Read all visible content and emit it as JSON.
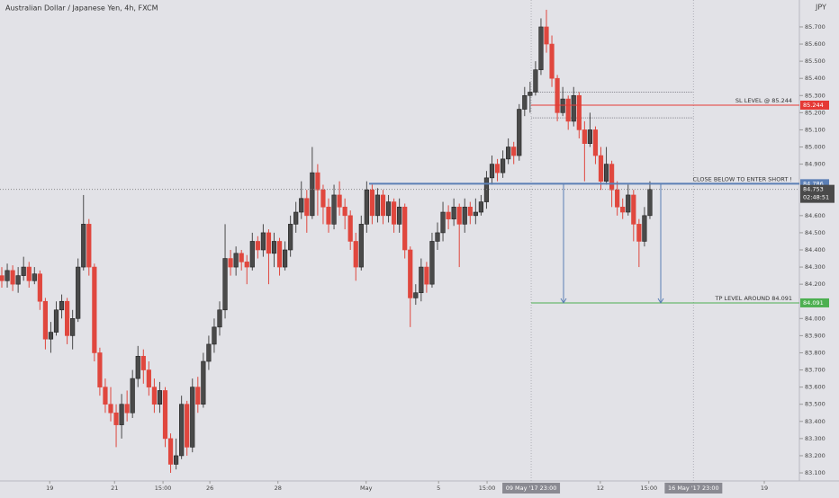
{
  "chart_data": {
    "type": "candlestick",
    "title": "Australian Dollar / Japanese Yen, 4h, FXCM",
    "currency": "JPY",
    "countdown": "02:48:51",
    "ylim": [
      83.053,
      85.857
    ],
    "yticks": [
      {
        "value": 83.1,
        "label": "83.100"
      },
      {
        "value": 83.2,
        "label": "83.200"
      },
      {
        "value": 83.3,
        "label": "83.300"
      },
      {
        "value": 83.4,
        "label": "83.400"
      },
      {
        "value": 83.5,
        "label": "83.500"
      },
      {
        "value": 83.6,
        "label": "83.600"
      },
      {
        "value": 83.7,
        "label": "83.700"
      },
      {
        "value": 83.8,
        "label": "83.800"
      },
      {
        "value": 83.9,
        "label": "83.900"
      },
      {
        "value": 84.0,
        "label": "84.000"
      },
      {
        "value": 84.2,
        "label": "84.200"
      },
      {
        "value": 84.3,
        "label": "84.300"
      },
      {
        "value": 84.4,
        "label": "84.400"
      },
      {
        "value": 84.5,
        "label": "84.500"
      },
      {
        "value": 84.6,
        "label": "84.600"
      },
      {
        "value": 84.9,
        "label": "84.900"
      },
      {
        "value": 85.0,
        "label": "85.000"
      },
      {
        "value": 85.1,
        "label": "85.100"
      },
      {
        "value": 85.2,
        "label": "85.200"
      },
      {
        "value": 85.3,
        "label": "85.300"
      },
      {
        "value": 85.4,
        "label": "85.400"
      },
      {
        "value": 85.5,
        "label": "85.500"
      },
      {
        "value": 85.6,
        "label": "85.600"
      },
      {
        "value": 85.7,
        "label": "85.700"
      }
    ],
    "xticks": [
      {
        "value": 8.8,
        "label": "19"
      },
      {
        "value": 20.7,
        "label": "21"
      },
      {
        "value": 29.6,
        "label": "15:00"
      },
      {
        "value": 38.2,
        "label": "26"
      },
      {
        "value": 50.7,
        "label": "28"
      },
      {
        "value": 66.9,
        "label": "May"
      },
      {
        "value": 80.2,
        "label": "5"
      },
      {
        "value": 89.1,
        "label": "15:00"
      },
      {
        "value": 109.9,
        "label": "12"
      },
      {
        "value": 118.8,
        "label": "15:00"
      },
      {
        "value": 140,
        "label": "19"
      }
    ],
    "xmarkers": [
      {
        "value": 97.2,
        "label": "09 May '17 23:00"
      },
      {
        "value": 127,
        "label": "16 May '17 23:00"
      }
    ],
    "up_color": "#4a4a4a",
    "down_color": "#e0473e",
    "levels": [
      {
        "value": 85.244,
        "label": "SL LEVEL @ 85.244",
        "color": "#e53935"
      },
      {
        "value": 84.786,
        "label": "CLOSE BELOW TO ENTER SHORT !",
        "color": "#5b7fb5"
      },
      {
        "value": 84.091,
        "label": "TP LEVEL AROUND 84.091",
        "color": "#4caf50"
      }
    ],
    "zone": [
      85.32,
      85.17
    ],
    "candles": [
      [
        84.25,
        84.3,
        84.18,
        84.22
      ],
      [
        84.22,
        84.32,
        84.18,
        84.28
      ],
      [
        84.28,
        84.31,
        84.16,
        84.2
      ],
      [
        84.2,
        84.3,
        84.15,
        84.25
      ],
      [
        84.25,
        84.36,
        84.22,
        84.3
      ],
      [
        84.3,
        84.33,
        84.18,
        84.22
      ],
      [
        84.22,
        84.3,
        84.2,
        84.26
      ],
      [
        84.26,
        84.28,
        84.05,
        84.1
      ],
      [
        84.1,
        84.12,
        83.82,
        83.88
      ],
      [
        83.88,
        83.98,
        83.8,
        83.92
      ],
      [
        83.92,
        84.1,
        83.9,
        84.05
      ],
      [
        84.05,
        84.14,
        84.0,
        84.1
      ],
      [
        84.1,
        84.12,
        83.85,
        83.9
      ],
      [
        83.9,
        84.05,
        83.82,
        84.0
      ],
      [
        84.0,
        84.35,
        83.98,
        84.3
      ],
      [
        84.3,
        84.72,
        84.28,
        84.55
      ],
      [
        84.55,
        84.58,
        84.25,
        84.3
      ],
      [
        84.3,
        84.32,
        83.75,
        83.8
      ],
      [
        83.8,
        83.83,
        83.55,
        83.6
      ],
      [
        83.6,
        83.65,
        83.45,
        83.5
      ],
      [
        83.5,
        83.6,
        83.4,
        83.45
      ],
      [
        83.45,
        83.5,
        83.25,
        83.38
      ],
      [
        83.38,
        83.56,
        83.3,
        83.5
      ],
      [
        83.5,
        83.58,
        83.4,
        83.45
      ],
      [
        83.45,
        83.7,
        83.42,
        83.65
      ],
      [
        83.65,
        83.84,
        83.6,
        83.78
      ],
      [
        83.78,
        83.82,
        83.62,
        83.7
      ],
      [
        83.7,
        83.75,
        83.55,
        83.6
      ],
      [
        83.6,
        83.65,
        83.45,
        83.5
      ],
      [
        83.5,
        83.63,
        83.45,
        83.58
      ],
      [
        83.58,
        83.6,
        83.25,
        83.3
      ],
      [
        83.3,
        83.33,
        83.1,
        83.15
      ],
      [
        83.15,
        83.3,
        83.12,
        83.2
      ],
      [
        83.2,
        83.55,
        83.18,
        83.5
      ],
      [
        83.5,
        83.52,
        83.2,
        83.25
      ],
      [
        83.25,
        83.65,
        83.22,
        83.6
      ],
      [
        83.6,
        83.66,
        83.45,
        83.5
      ],
      [
        83.5,
        83.8,
        83.48,
        83.75
      ],
      [
        83.75,
        83.9,
        83.7,
        83.85
      ],
      [
        83.85,
        84.0,
        83.8,
        83.95
      ],
      [
        83.95,
        84.1,
        83.9,
        84.05
      ],
      [
        84.05,
        84.55,
        84.0,
        84.35
      ],
      [
        84.35,
        84.4,
        84.25,
        84.3
      ],
      [
        84.3,
        84.42,
        84.25,
        84.38
      ],
      [
        84.38,
        84.4,
        84.28,
        84.33
      ],
      [
        84.33,
        84.37,
        84.2,
        84.3
      ],
      [
        84.3,
        84.5,
        84.28,
        84.45
      ],
      [
        84.45,
        84.48,
        84.35,
        84.4
      ],
      [
        84.4,
        84.55,
        84.36,
        84.5
      ],
      [
        84.5,
        84.52,
        84.2,
        84.38
      ],
      [
        84.38,
        84.5,
        84.3,
        84.45
      ],
      [
        84.45,
        84.47,
        84.25,
        84.3
      ],
      [
        84.3,
        84.45,
        84.28,
        84.4
      ],
      [
        84.4,
        84.6,
        84.36,
        84.55
      ],
      [
        84.55,
        84.68,
        84.5,
        84.62
      ],
      [
        84.62,
        84.8,
        84.58,
        84.7
      ],
      [
        84.7,
        84.75,
        84.5,
        84.6
      ],
      [
        84.6,
        85.0,
        84.58,
        84.85
      ],
      [
        84.85,
        84.9,
        84.6,
        84.75
      ],
      [
        84.75,
        84.78,
        84.55,
        84.65
      ],
      [
        84.65,
        84.7,
        84.5,
        84.55
      ],
      [
        84.55,
        84.78,
        84.52,
        84.72
      ],
      [
        84.72,
        84.8,
        84.6,
        84.65
      ],
      [
        84.65,
        84.7,
        84.52,
        84.6
      ],
      [
        84.6,
        84.63,
        84.4,
        84.45
      ],
      [
        84.45,
        84.5,
        84.22,
        84.3
      ],
      [
        84.3,
        84.6,
        84.28,
        84.55
      ],
      [
        84.55,
        84.8,
        84.5,
        84.75
      ],
      [
        84.75,
        84.78,
        84.55,
        84.6
      ],
      [
        84.6,
        84.76,
        84.56,
        84.72
      ],
      [
        84.72,
        84.75,
        84.55,
        84.6
      ],
      [
        84.6,
        84.72,
        84.56,
        84.68
      ],
      [
        84.68,
        84.7,
        84.5,
        84.55
      ],
      [
        84.55,
        84.7,
        84.5,
        84.65
      ],
      [
        84.65,
        84.67,
        84.35,
        84.4
      ],
      [
        84.4,
        84.42,
        83.95,
        84.12
      ],
      [
        84.12,
        84.2,
        84.08,
        84.15
      ],
      [
        84.15,
        84.35,
        84.1,
        84.3
      ],
      [
        84.3,
        84.33,
        84.15,
        84.2
      ],
      [
        84.2,
        84.5,
        84.18,
        84.45
      ],
      [
        84.45,
        84.56,
        84.4,
        84.5
      ],
      [
        84.5,
        84.68,
        84.45,
        84.62
      ],
      [
        84.62,
        84.66,
        84.52,
        84.58
      ],
      [
        84.58,
        84.7,
        84.54,
        84.65
      ],
      [
        84.65,
        84.67,
        84.3,
        84.55
      ],
      [
        84.55,
        84.7,
        84.5,
        84.65
      ],
      [
        84.65,
        84.68,
        84.55,
        84.6
      ],
      [
        84.6,
        84.7,
        84.55,
        84.62
      ],
      [
        84.62,
        84.72,
        84.6,
        84.68
      ],
      [
        84.68,
        84.86,
        84.64,
        84.82
      ],
      [
        84.82,
        84.95,
        84.78,
        84.9
      ],
      [
        84.9,
        84.93,
        84.8,
        84.85
      ],
      [
        84.85,
        84.98,
        84.82,
        84.93
      ],
      [
        84.93,
        85.05,
        84.9,
        85.0
      ],
      [
        85.0,
        85.03,
        84.9,
        84.95
      ],
      [
        84.95,
        85.25,
        84.92,
        85.22
      ],
      [
        85.22,
        85.35,
        85.18,
        85.3
      ],
      [
        85.3,
        85.38,
        85.2,
        85.32
      ],
      [
        85.32,
        85.5,
        85.3,
        85.45
      ],
      [
        85.45,
        85.75,
        85.42,
        85.7
      ],
      [
        85.7,
        85.8,
        85.55,
        85.6
      ],
      [
        85.6,
        85.65,
        85.35,
        85.4
      ],
      [
        85.4,
        85.42,
        85.15,
        85.2
      ],
      [
        85.2,
        85.35,
        85.18,
        85.28
      ],
      [
        85.28,
        85.3,
        85.1,
        85.15
      ],
      [
        85.15,
        85.35,
        85.12,
        85.3
      ],
      [
        85.3,
        85.32,
        85.05,
        85.1
      ],
      [
        85.1,
        85.15,
        84.8,
        85.02
      ],
      [
        85.02,
        85.2,
        85.0,
        85.1
      ],
      [
        85.1,
        85.12,
        84.9,
        84.95
      ],
      [
        84.95,
        85.0,
        84.75,
        84.8
      ],
      [
        84.8,
        85.0,
        84.78,
        84.9
      ],
      [
        84.9,
        84.92,
        84.65,
        84.75
      ],
      [
        84.75,
        84.8,
        84.6,
        84.65
      ],
      [
        84.65,
        84.7,
        84.58,
        84.62
      ],
      [
        84.62,
        84.78,
        84.6,
        84.72
      ],
      [
        84.72,
        84.75,
        84.45,
        84.55
      ],
      [
        84.55,
        84.58,
        84.3,
        84.45
      ],
      [
        84.45,
        84.65,
        84.42,
        84.6
      ],
      [
        84.6,
        84.8,
        84.58,
        84.753
      ]
    ]
  }
}
